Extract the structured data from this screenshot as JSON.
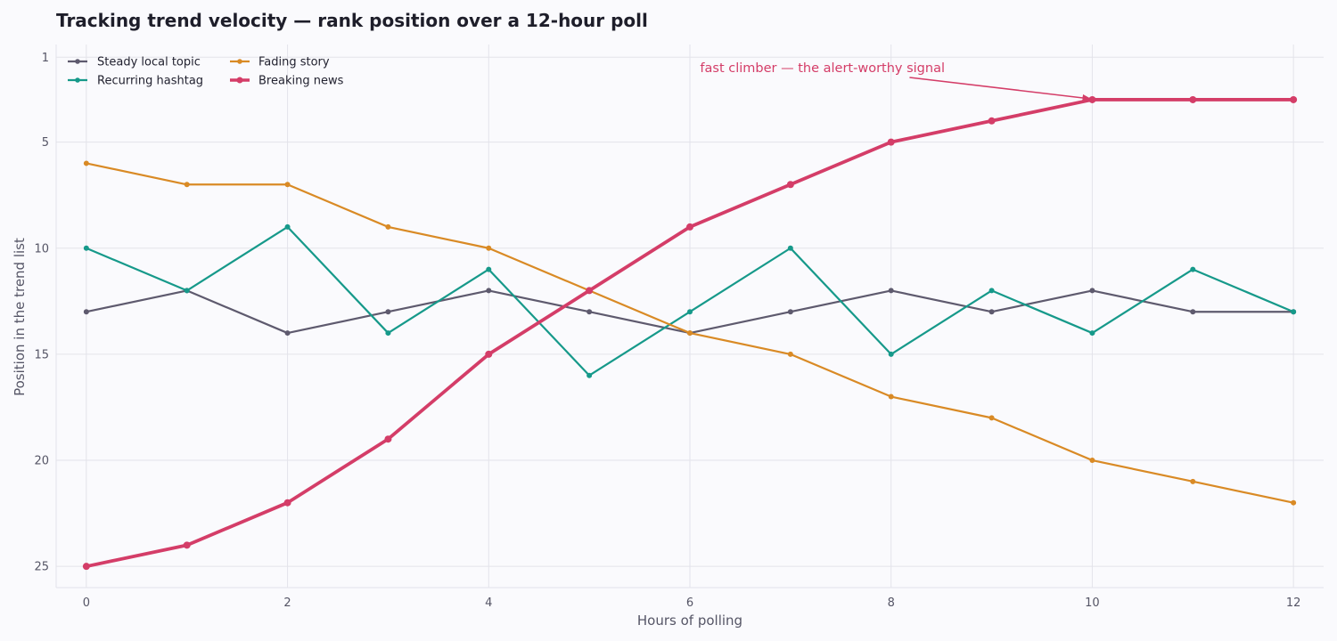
{
  "chart_data": {
    "type": "line",
    "title": "Tracking trend velocity — rank position over a 12-hour poll",
    "xlabel": "Hours of polling",
    "ylabel": "Position in the trend list",
    "x": [
      0,
      1,
      2,
      3,
      4,
      5,
      6,
      7,
      8,
      9,
      10,
      11,
      12
    ],
    "xlim": [
      -0.3,
      12.3
    ],
    "xticks": [
      0,
      2,
      4,
      6,
      8,
      10,
      12
    ],
    "ylim": [
      26,
      0.4
    ],
    "y_inverted": true,
    "yticks": [
      1,
      5,
      10,
      15,
      20,
      25
    ],
    "grid": true,
    "legend_position": "top-left",
    "series": [
      {
        "name": "Steady local topic",
        "color": "#5e5a6e",
        "emphasis": false,
        "values": [
          13,
          12,
          14,
          13,
          12,
          13,
          14,
          13,
          12,
          13,
          12,
          13,
          13
        ]
      },
      {
        "name": "Recurring hashtag",
        "color": "#16998a",
        "emphasis": false,
        "values": [
          10,
          12,
          9,
          14,
          11,
          16,
          13,
          10,
          15,
          12,
          14,
          11,
          13
        ]
      },
      {
        "name": "Fading story",
        "color": "#d98a25",
        "emphasis": false,
        "values": [
          6,
          7,
          7,
          9,
          10,
          12,
          14,
          15,
          17,
          18,
          20,
          21,
          22
        ]
      },
      {
        "name": "Breaking news",
        "color": "#d43d68",
        "emphasis": true,
        "values": [
          25,
          24,
          22,
          19,
          15,
          12,
          9,
          7,
          5,
          4,
          3,
          3,
          3
        ]
      }
    ],
    "annotations": [
      {
        "text": "fast climber — the alert-worthy signal",
        "color": "#d43d68",
        "target_x": 10,
        "target_y": 3
      }
    ]
  }
}
